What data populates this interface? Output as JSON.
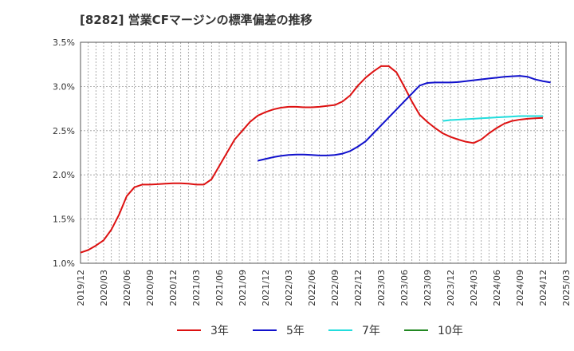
{
  "chart_data": {
    "type": "line",
    "title": "[8282]  営業CFマージンの標準偏差の推移",
    "xlabel": "",
    "ylabel": "",
    "ylim": [
      1.0,
      3.5
    ],
    "yticks": [
      1.0,
      1.5,
      2.0,
      2.5,
      3.0,
      3.5
    ],
    "ytick_labels": [
      "1.0%",
      "1.5%",
      "2.0%",
      "2.5%",
      "3.0%",
      "3.5%"
    ],
    "xticks": [
      "2019/12",
      "2020/03",
      "2020/06",
      "2020/09",
      "2020/12",
      "2021/03",
      "2021/06",
      "2021/09",
      "2021/12",
      "2022/03",
      "2022/06",
      "2022/09",
      "2022/12",
      "2023/03",
      "2023/06",
      "2023/09",
      "2023/12",
      "2024/03",
      "2024/06",
      "2024/09",
      "2024/12",
      "2025/03"
    ],
    "grid": true,
    "legend_position": "bottom",
    "series": [
      {
        "name": "3年",
        "color": "#dd1111",
        "start_index": 0,
        "values": [
          1.12,
          1.15,
          1.2,
          1.26,
          1.38,
          1.55,
          1.76,
          1.86,
          1.89,
          1.89,
          1.895,
          1.9,
          1.905,
          1.905,
          1.9,
          1.89,
          1.89,
          1.95,
          2.1,
          2.25,
          2.4,
          2.5,
          2.6,
          2.67,
          2.71,
          2.74,
          2.76,
          2.77,
          2.77,
          2.765,
          2.765,
          2.77,
          2.78,
          2.79,
          2.83,
          2.9,
          3.01,
          3.1,
          3.17,
          3.23,
          3.23,
          3.16,
          3.0,
          2.83,
          2.68,
          2.6,
          2.53,
          2.47,
          2.43,
          2.4,
          2.375,
          2.36,
          2.4,
          2.47,
          2.53,
          2.58,
          2.61,
          2.625,
          2.635,
          2.64,
          2.645
        ]
      },
      {
        "name": "5年",
        "color": "#1111cc",
        "start_index": 23,
        "values": [
          2.16,
          2.18,
          2.2,
          2.215,
          2.225,
          2.23,
          2.23,
          2.225,
          2.22,
          2.22,
          2.225,
          2.24,
          2.27,
          2.32,
          2.38,
          2.47,
          2.56,
          2.65,
          2.74,
          2.83,
          2.92,
          3.01,
          3.04,
          3.045,
          3.045,
          3.045,
          3.05,
          3.06,
          3.07,
          3.08,
          3.09,
          3.1,
          3.11,
          3.115,
          3.12,
          3.11,
          3.08,
          3.06,
          3.045
        ]
      },
      {
        "name": "7年",
        "color": "#22dddd",
        "start_index": 47,
        "values": [
          2.61,
          2.62,
          2.625,
          2.63,
          2.635,
          2.64,
          2.645,
          2.65,
          2.655,
          2.66,
          2.665,
          2.665,
          2.665,
          2.665
        ]
      },
      {
        "name": "10年",
        "color": "#228822",
        "start_index": 61,
        "values": []
      }
    ]
  }
}
